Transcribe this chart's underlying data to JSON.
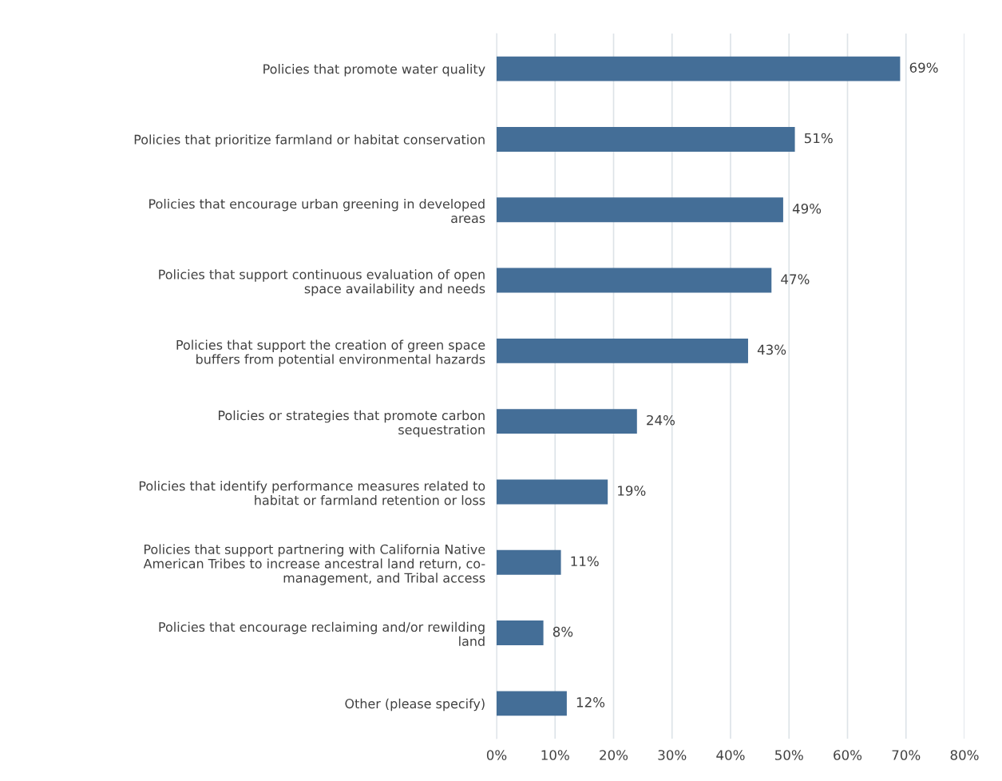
{
  "chart_data": {
    "type": "bar",
    "orientation": "horizontal",
    "categories": [
      "Policies that promote water quality",
      "Policies that prioritize farmland or habitat conservation",
      "Policies that encourage urban greening in developed\nareas",
      "Policies that support continuous evaluation of open\nspace availability and needs",
      "Policies that support the creation of green space\nbuffers from potential environmental hazards",
      "Policies or strategies that promote carbon\nsequestration",
      "Policies that identify performance measures related to\nhabitat or farmland retention or loss",
      "Policies that support partnering with California Native\nAmerican Tribes to increase ancestral land return, co-\nmanagement, and Tribal access",
      "Policies that encourage reclaiming and/or rewilding\nland",
      "Other (please specify)"
    ],
    "values": [
      69,
      51,
      49,
      47,
      43,
      24,
      19,
      11,
      8,
      12
    ],
    "value_labels": [
      "69%",
      "51%",
      "49%",
      "47%",
      "43%",
      "24%",
      "19%",
      "11%",
      "8%",
      "12%"
    ],
    "color": "#446e97",
    "xlim": [
      0,
      80
    ],
    "xticks": [
      {
        "value": 0,
        "label": "0%"
      },
      {
        "value": 10,
        "label": "10%"
      },
      {
        "value": 20,
        "label": "20%"
      },
      {
        "value": 30,
        "label": "30%"
      },
      {
        "value": 40,
        "label": "40%"
      },
      {
        "value": 50,
        "label": "50%"
      },
      {
        "value": 60,
        "label": "60%"
      },
      {
        "value": 70,
        "label": "70%"
      },
      {
        "value": 80,
        "label": "80%"
      }
    ],
    "grid": "x"
  }
}
